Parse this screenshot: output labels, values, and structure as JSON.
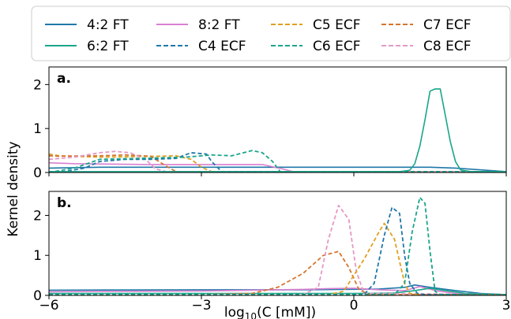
{
  "chart_data": {
    "type": "line",
    "ylabel": "Kernel density",
    "xlabel_parts": {
      "base": "log",
      "sub": "10",
      "rest": "(C [mM])"
    },
    "xlim": [
      -6,
      3
    ],
    "xticks": [
      "−6",
      "−3",
      "0",
      "3"
    ],
    "xtick_values": [
      -6,
      -3,
      0,
      3
    ],
    "legend": {
      "placement": "top",
      "entries": [
        {
          "key": "s42",
          "label": "4:2 FT"
        },
        {
          "key": "s82",
          "label": "8:2 FT"
        },
        {
          "key": "c5",
          "label": "C5 ECF"
        },
        {
          "key": "c7",
          "label": "C7 ECF"
        },
        {
          "key": "s62",
          "label": "6:2 FT"
        },
        {
          "key": "c4",
          "label": "C4 ECF"
        },
        {
          "key": "c6",
          "label": "C6 ECF"
        },
        {
          "key": "c8",
          "label": "C8 ECF"
        }
      ]
    },
    "styles": {
      "s42": {
        "color": "#1f78a8",
        "dash": "solid"
      },
      "s62": {
        "color": "#1aa58a",
        "dash": "solid"
      },
      "s82": {
        "color": "#d97fd0",
        "dash": "solid"
      },
      "c4": {
        "color": "#1f78a8",
        "dash": "dashed"
      },
      "c5": {
        "color": "#e0a020",
        "dash": "dashed"
      },
      "c6": {
        "color": "#1aa58a",
        "dash": "dashed"
      },
      "c7": {
        "color": "#d5762f",
        "dash": "dashed"
      },
      "c8": {
        "color": "#e598c5",
        "dash": "dashed"
      }
    },
    "panels": [
      {
        "label": "a.",
        "ylim": [
          0,
          2.4
        ],
        "yticks": [
          0,
          1,
          2
        ],
        "series": [
          {
            "key": "s42",
            "x": [
              -6,
              -5,
              -3,
              0,
              1.5,
              2,
              3
            ],
            "y": [
              0.1,
              0.12,
              0.12,
              0.12,
              0.12,
              0.1,
              0.02
            ]
          },
          {
            "key": "s82",
            "x": [
              -6,
              -5.5,
              -4,
              -3,
              -1.8,
              -1.4,
              -1.2,
              3
            ],
            "y": [
              0.22,
              0.2,
              0.18,
              0.18,
              0.18,
              0.08,
              0.02,
              0.02
            ]
          },
          {
            "key": "c5",
            "x": [
              -6,
              -5.8,
              -5,
              -3.8,
              -3.5,
              -3.2,
              -3.0,
              -2.8,
              3
            ],
            "y": [
              0.42,
              0.38,
              0.35,
              0.37,
              0.38,
              0.3,
              0.12,
              0.02,
              0.02
            ]
          },
          {
            "key": "c7",
            "x": [
              -6,
              -5.8,
              -5,
              -4.5,
              -4.0,
              -3.7,
              -3.5,
              3
            ],
            "y": [
              0.38,
              0.37,
              0.38,
              0.4,
              0.37,
              0.15,
              0.02,
              0.02
            ]
          },
          {
            "key": "c8",
            "x": [
              -6,
              -5.5,
              -5,
              -4.7,
              -4.4,
              -4.1,
              -3.9,
              -3.7,
              3
            ],
            "y": [
              0.3,
              0.35,
              0.45,
              0.48,
              0.45,
              0.3,
              0.08,
              0.02,
              0.02
            ]
          },
          {
            "key": "c4",
            "x": [
              -6,
              -5.7,
              -5.3,
              -5,
              -4.5,
              -4,
              -3.5,
              -3.2,
              -2.9,
              -2.8,
              -2.6,
              3
            ],
            "y": [
              0.02,
              0.02,
              0.1,
              0.25,
              0.3,
              0.3,
              0.32,
              0.45,
              0.42,
              0.25,
              0.02,
              0.02
            ]
          },
          {
            "key": "c6",
            "x": [
              -6,
              -5.9,
              -5.5,
              -5,
              -3.3,
              -2.8,
              -2.4,
              -2.0,
              -1.8,
              -1.6,
              -1.45,
              3
            ],
            "y": [
              0.02,
              0.02,
              0.1,
              0.3,
              0.35,
              0.4,
              0.38,
              0.5,
              0.45,
              0.25,
              0.02,
              0.02
            ]
          },
          {
            "key": "s62",
            "x": [
              -6,
              0.9,
              1.1,
              1.2,
              1.3,
              1.4,
              1.5,
              1.6,
              1.7,
              1.8,
              1.9,
              2.0,
              2.1,
              2.3,
              3
            ],
            "y": [
              0.02,
              0.02,
              0.05,
              0.2,
              0.6,
              1.2,
              1.85,
              1.9,
              1.9,
              1.3,
              0.7,
              0.25,
              0.06,
              0.02,
              0.02
            ]
          }
        ]
      },
      {
        "label": "b.",
        "ylim": [
          0,
          2.6
        ],
        "yticks": [
          0,
          1,
          2
        ],
        "series": [
          {
            "key": "s42",
            "x": [
              -6,
              -3,
              -1,
              0.5,
              1.0,
              1.2,
              1.5,
              2.0,
              2.5,
              3
            ],
            "y": [
              0.13,
              0.14,
              0.14,
              0.16,
              0.2,
              0.26,
              0.2,
              0.12,
              0.05,
              0.02
            ]
          },
          {
            "key": "s82",
            "x": [
              -6,
              -3,
              -1,
              -0.5,
              0,
              0.5,
              1.0,
              1.3,
              1.6,
              2.0,
              3
            ],
            "y": [
              0.09,
              0.11,
              0.15,
              0.17,
              0.18,
              0.14,
              0.12,
              0.22,
              0.12,
              0.05,
              0.02
            ]
          },
          {
            "key": "s62",
            "x": [
              -6,
              -2,
              0,
              0.8,
              1.2,
              1.5,
              1.8,
              2.2,
              3
            ],
            "y": [
              0.05,
              0.05,
              0.05,
              0.06,
              0.12,
              0.18,
              0.12,
              0.05,
              0.02
            ]
          },
          {
            "key": "c7",
            "x": [
              -6,
              -3,
              -2.0,
              -1.5,
              -1.0,
              -0.6,
              -0.3,
              -0.1,
              0.1,
              0.3,
              3
            ],
            "y": [
              0.02,
              0.02,
              0.05,
              0.2,
              0.55,
              1.0,
              1.1,
              0.7,
              0.15,
              0.02,
              0.02
            ]
          },
          {
            "key": "c8",
            "x": [
              -6,
              -1.0,
              -0.7,
              -0.5,
              -0.3,
              -0.1,
              0.05,
              0.2,
              3
            ],
            "y": [
              0.02,
              0.02,
              0.2,
              1.4,
              2.25,
              1.9,
              0.6,
              0.05,
              0.02
            ]
          },
          {
            "key": "c5",
            "x": [
              -6,
              -0.5,
              -0.2,
              0.2,
              0.5,
              0.6,
              0.8,
              1.0,
              1.1,
              1.3,
              3
            ],
            "y": [
              0.02,
              0.02,
              0.1,
              0.9,
              1.6,
              1.8,
              1.4,
              0.3,
              0.05,
              0.02,
              0.02
            ]
          },
          {
            "key": "c4",
            "x": [
              -6,
              0.2,
              0.4,
              0.6,
              0.75,
              0.9,
              1.0,
              1.1,
              1.25,
              1.4,
              3
            ],
            "y": [
              0.02,
              0.02,
              0.3,
              1.5,
              2.2,
              2.05,
              1.0,
              0.3,
              0.05,
              0.02,
              0.02
            ]
          },
          {
            "key": "c6",
            "x": [
              -6,
              0.8,
              1.0,
              1.15,
              1.3,
              1.4,
              1.5,
              1.6,
              1.7,
              3
            ],
            "y": [
              0.02,
              0.02,
              0.3,
              1.6,
              2.45,
              2.3,
              1.1,
              0.1,
              0.02,
              0.02
            ]
          }
        ]
      }
    ]
  }
}
